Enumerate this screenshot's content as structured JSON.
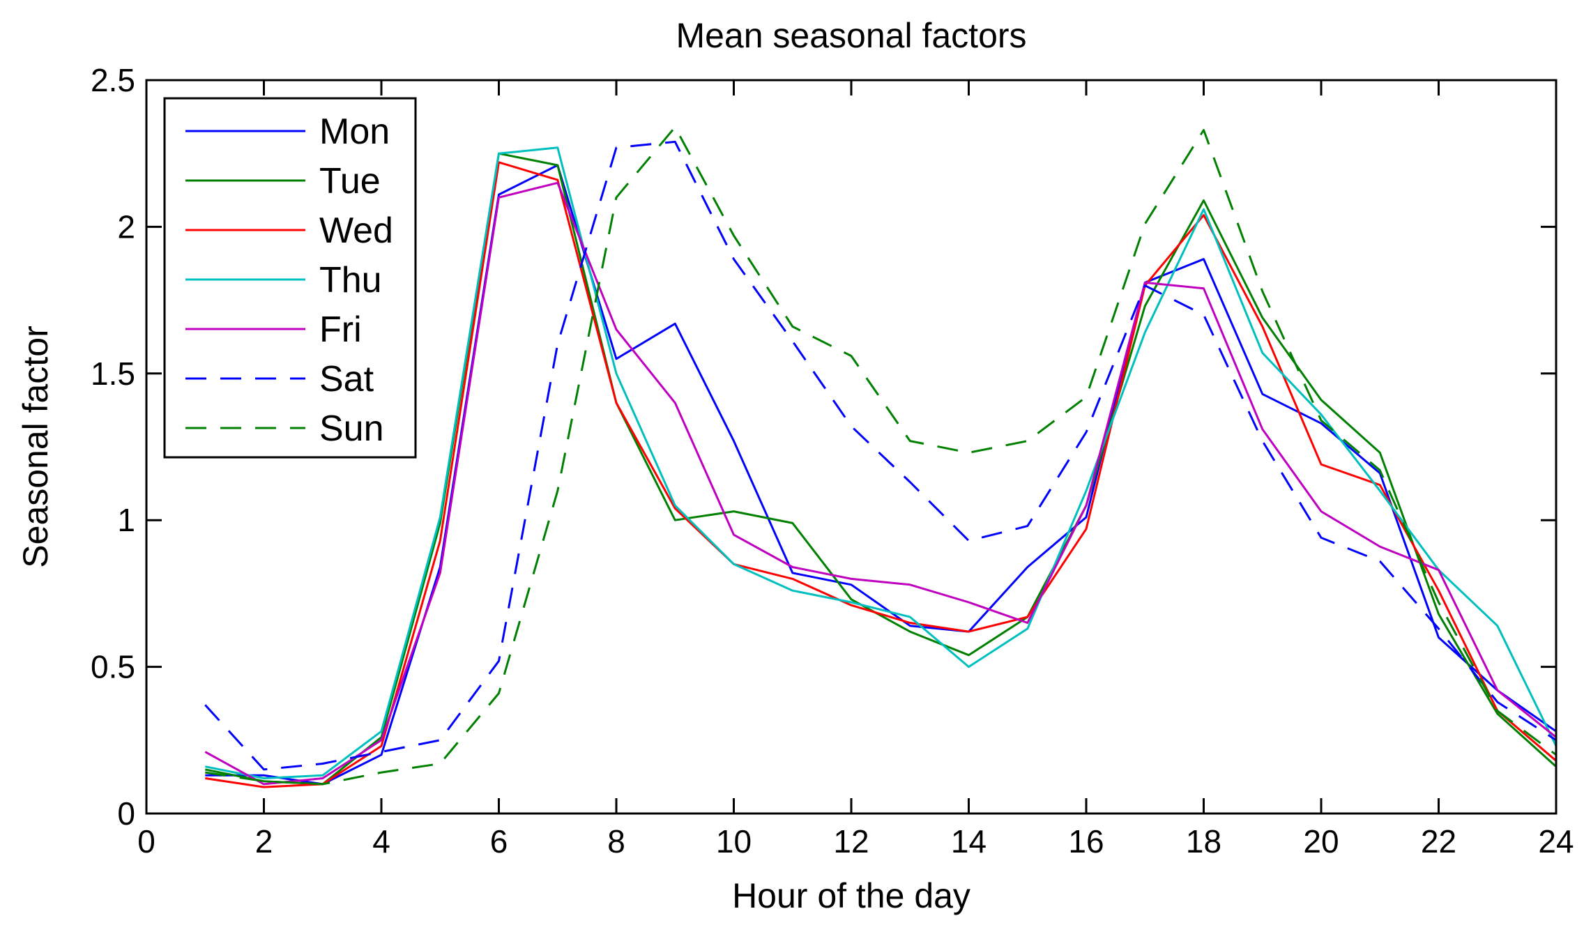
{
  "chart_data": {
    "type": "line",
    "title": "Mean seasonal factors",
    "xlabel": "Hour of the day",
    "ylabel": "Seasonal factor",
    "xlim": [
      0,
      24
    ],
    "ylim": [
      0,
      2.5
    ],
    "xticks": [
      "0",
      "2",
      "4",
      "6",
      "8",
      "10",
      "12",
      "14",
      "16",
      "18",
      "20",
      "22",
      "24"
    ],
    "yticks": [
      "0",
      "0.5",
      "1",
      "1.5",
      "2",
      "2.5"
    ],
    "xtick_values": [
      0,
      2,
      4,
      6,
      8,
      10,
      12,
      14,
      16,
      18,
      20,
      22,
      24
    ],
    "ytick_values": [
      0,
      0.5,
      1,
      1.5,
      2,
      2.5
    ],
    "grid": false,
    "legend_position": "top-left",
    "x": [
      1,
      2,
      3,
      4,
      5,
      6,
      7,
      8,
      9,
      10,
      11,
      12,
      13,
      14,
      15,
      16,
      17,
      18,
      19,
      20,
      21,
      22,
      23,
      24
    ],
    "series": [
      {
        "name": "Mon",
        "color": "#0000ff",
        "dash": "solid",
        "values": [
          0.13,
          0.13,
          0.1,
          0.2,
          0.84,
          2.11,
          2.21,
          1.55,
          1.67,
          1.27,
          0.82,
          0.78,
          0.64,
          0.62,
          0.84,
          1.01,
          1.81,
          1.89,
          1.43,
          1.33,
          1.16,
          0.6,
          0.42,
          0.28
        ]
      },
      {
        "name": "Tue",
        "color": "#008000",
        "dash": "solid",
        "values": [
          0.15,
          0.11,
          0.1,
          0.26,
          0.99,
          2.25,
          2.21,
          1.4,
          1.0,
          1.03,
          0.99,
          0.73,
          0.62,
          0.54,
          0.67,
          1.05,
          1.73,
          2.09,
          1.69,
          1.41,
          1.23,
          0.68,
          0.34,
          0.16
        ]
      },
      {
        "name": "Wed",
        "color": "#ff0000",
        "dash": "solid",
        "values": [
          0.12,
          0.09,
          0.1,
          0.23,
          0.93,
          2.22,
          2.16,
          1.4,
          1.04,
          0.85,
          0.8,
          0.71,
          0.65,
          0.62,
          0.67,
          0.97,
          1.8,
          2.04,
          1.66,
          1.19,
          1.12,
          0.76,
          0.35,
          0.18
        ]
      },
      {
        "name": "Thu",
        "color": "#00bfbf",
        "dash": "solid",
        "values": [
          0.16,
          0.12,
          0.13,
          0.28,
          1.01,
          2.25,
          2.27,
          1.5,
          1.05,
          0.85,
          0.76,
          0.72,
          0.67,
          0.5,
          0.63,
          1.1,
          1.64,
          2.06,
          1.57,
          1.36,
          1.1,
          0.83,
          0.64,
          0.23
        ]
      },
      {
        "name": "Fri",
        "color": "#bf00bf",
        "dash": "solid",
        "values": [
          0.21,
          0.1,
          0.12,
          0.25,
          0.82,
          2.1,
          2.15,
          1.65,
          1.4,
          0.95,
          0.84,
          0.8,
          0.78,
          0.72,
          0.65,
          1.05,
          1.81,
          1.79,
          1.31,
          1.03,
          0.91,
          0.83,
          0.42,
          0.26
        ]
      },
      {
        "name": "Sat",
        "color": "#0000ff",
        "dash": "dashed",
        "values": [
          0.37,
          0.15,
          0.17,
          0.21,
          0.25,
          0.52,
          1.6,
          2.27,
          2.29,
          1.89,
          1.61,
          1.32,
          1.13,
          0.93,
          0.98,
          1.3,
          1.8,
          1.7,
          1.27,
          0.94,
          0.86,
          0.63,
          0.38,
          0.25
        ]
      },
      {
        "name": "Sun",
        "color": "#008000",
        "dash": "dashed",
        "values": [
          0.14,
          0.11,
          0.1,
          0.14,
          0.17,
          0.41,
          1.1,
          2.1,
          2.34,
          1.97,
          1.66,
          1.56,
          1.27,
          1.23,
          1.27,
          1.42,
          2.01,
          2.33,
          1.78,
          1.34,
          1.17,
          0.72,
          0.35,
          0.2
        ]
      }
    ]
  }
}
